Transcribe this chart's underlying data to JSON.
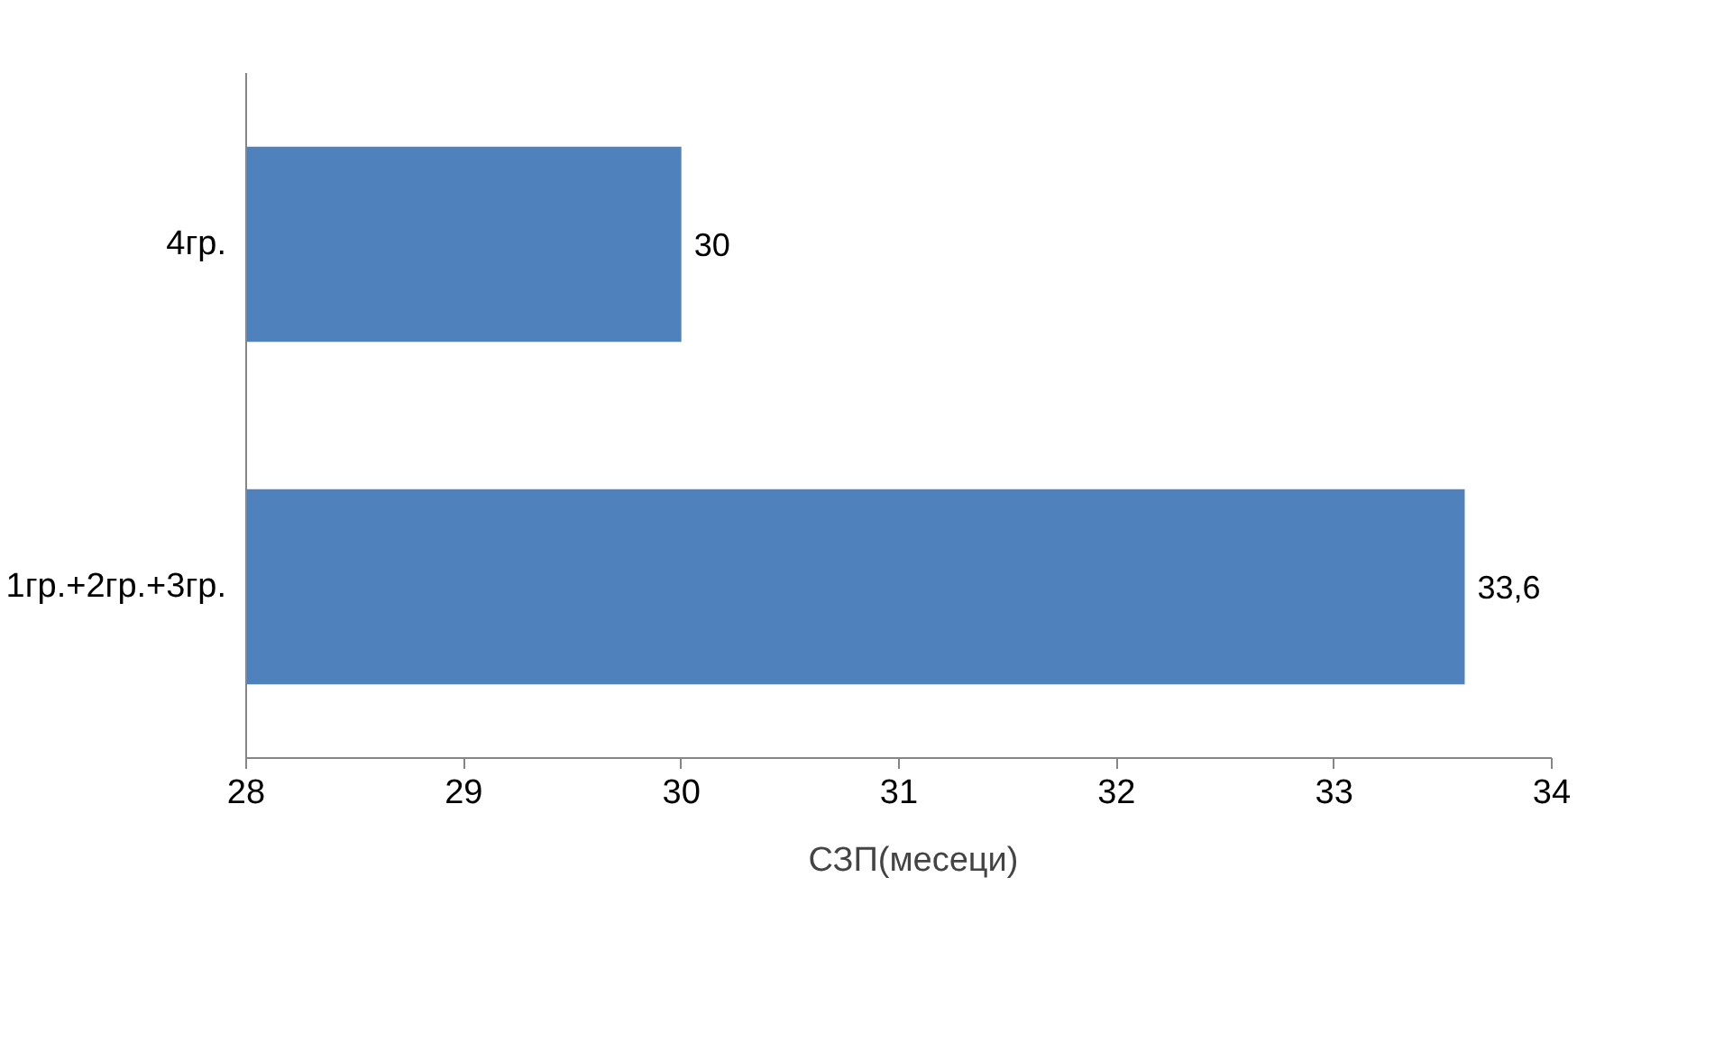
{
  "chart_data": {
    "type": "bar",
    "orientation": "horizontal",
    "categories": [
      "4гр.",
      "1гр.+2гр.+3гр."
    ],
    "series": [
      {
        "name": "СЗП(месеци)",
        "color": "#4f81bd",
        "values": [
          30,
          33.6
        ],
        "value_labels": [
          "30",
          "33,6"
        ]
      }
    ],
    "xlim": [
      28,
      34
    ],
    "xticks": [
      28,
      29,
      30,
      31,
      32,
      33,
      34
    ],
    "grid": false,
    "legend": "bottom"
  }
}
